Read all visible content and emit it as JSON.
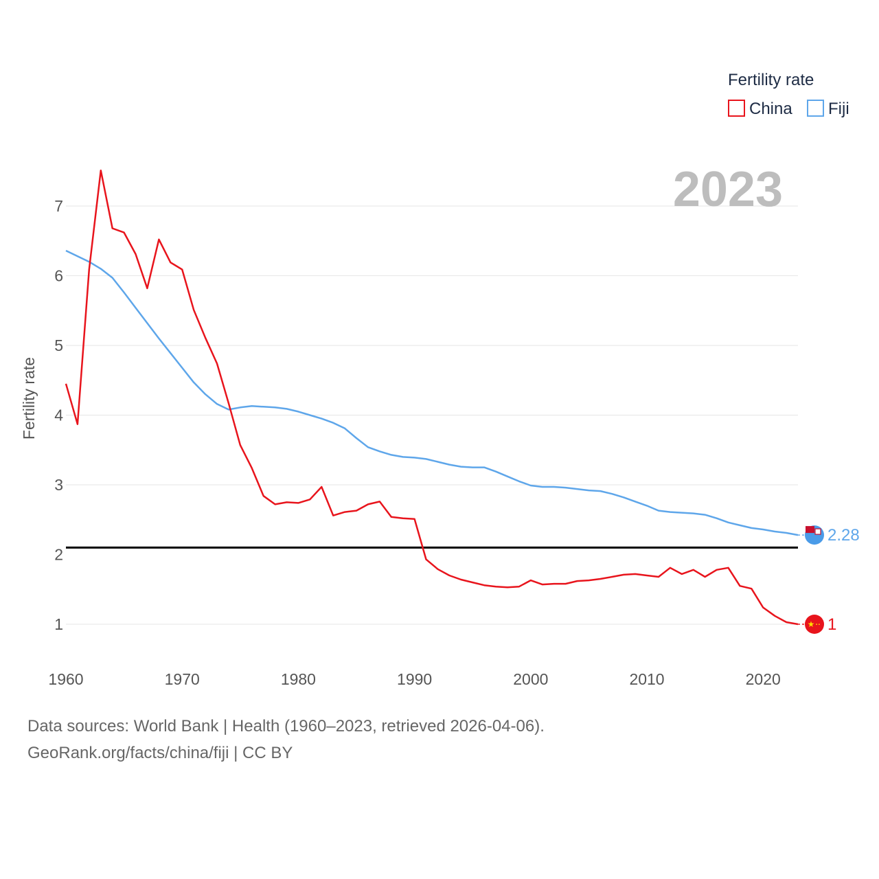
{
  "colors": {
    "china": "#e8141c",
    "fiji": "#5ea6ea",
    "grid": "#e6e6e6",
    "reference": "#000000",
    "tick": "#555555",
    "year": "#bdbdbd"
  },
  "legend": {
    "title": "Fertility rate"
  },
  "year_label": "2023",
  "footer": {
    "line1": "Data sources: World Bank | Health (1960–2023, retrieved 2026-04-06).",
    "line2": "GeoRank.org/facts/china/fiji | CC BY"
  },
  "chart_data": {
    "type": "line",
    "title": "",
    "xlabel": "",
    "ylabel": "Fertility rate",
    "xlim": [
      1960,
      2023
    ],
    "ylim": [
      0.5,
      7.5
    ],
    "x_ticks": [
      1960,
      1970,
      1980,
      1990,
      2000,
      2010,
      2020
    ],
    "y_ticks": [
      1,
      2,
      3,
      4,
      5,
      6,
      7
    ],
    "reference_line": {
      "y": 2.1
    },
    "x": [
      1960,
      1961,
      1962,
      1963,
      1964,
      1965,
      1966,
      1967,
      1968,
      1969,
      1970,
      1971,
      1972,
      1973,
      1974,
      1975,
      1976,
      1977,
      1978,
      1979,
      1980,
      1981,
      1982,
      1983,
      1984,
      1985,
      1986,
      1987,
      1988,
      1989,
      1990,
      1991,
      1992,
      1993,
      1994,
      1995,
      1996,
      1997,
      1998,
      1999,
      2000,
      2001,
      2002,
      2003,
      2004,
      2005,
      2006,
      2007,
      2008,
      2009,
      2010,
      2011,
      2012,
      2013,
      2014,
      2015,
      2016,
      2017,
      2018,
      2019,
      2020,
      2021,
      2022,
      2023
    ],
    "series": [
      {
        "name": "China",
        "end_label": "1",
        "values": [
          4.45,
          3.87,
          6.09,
          7.51,
          6.68,
          6.62,
          6.31,
          5.82,
          6.52,
          6.19,
          6.09,
          5.51,
          5.11,
          4.74,
          4.17,
          3.57,
          3.24,
          2.84,
          2.72,
          2.75,
          2.74,
          2.79,
          2.97,
          2.56,
          2.61,
          2.63,
          2.72,
          2.76,
          2.54,
          2.52,
          2.51,
          1.93,
          1.79,
          1.7,
          1.64,
          1.6,
          1.56,
          1.54,
          1.53,
          1.54,
          1.63,
          1.57,
          1.58,
          1.58,
          1.62,
          1.63,
          1.65,
          1.68,
          1.71,
          1.72,
          1.7,
          1.68,
          1.81,
          1.72,
          1.78,
          1.68,
          1.78,
          1.81,
          1.55,
          1.51,
          1.24,
          1.12,
          1.03,
          1.0
        ]
      },
      {
        "name": "Fiji",
        "end_label": "2.28",
        "values": [
          6.36,
          6.28,
          6.2,
          6.1,
          5.97,
          5.76,
          5.54,
          5.32,
          5.1,
          4.89,
          4.68,
          4.47,
          4.3,
          4.16,
          4.08,
          4.11,
          4.13,
          4.12,
          4.11,
          4.09,
          4.05,
          4.0,
          3.95,
          3.89,
          3.81,
          3.67,
          3.54,
          3.48,
          3.43,
          3.4,
          3.39,
          3.37,
          3.33,
          3.29,
          3.26,
          3.25,
          3.25,
          3.19,
          3.12,
          3.05,
          2.99,
          2.97,
          2.97,
          2.96,
          2.94,
          2.92,
          2.91,
          2.87,
          2.82,
          2.76,
          2.7,
          2.63,
          2.61,
          2.6,
          2.59,
          2.57,
          2.52,
          2.46,
          2.42,
          2.38,
          2.36,
          2.33,
          2.31,
          2.28
        ]
      }
    ]
  }
}
